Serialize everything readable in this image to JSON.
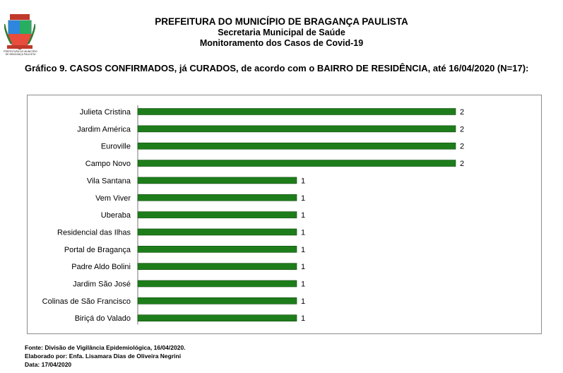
{
  "header": {
    "line1": "PREFEITURA DO MUNICÍPIO DE BRAGANÇA PAULISTA",
    "line2": "Secretaria Municipal de Saúde",
    "line3": "Monitoramento dos Casos de Covid-19"
  },
  "logo": {
    "caption_line1": "PREFEITURA DO MUNICÍPIO",
    "caption_line2": "DE BRAGANÇA PAULISTA"
  },
  "chart_data": {
    "type": "bar",
    "orientation": "horizontal",
    "title": "Gráfico 9. CASOS CONFIRMADOS, já CURADOS, de acordo com o BAIRRO DE RESIDÊNCIA, até 16/04/2020 (N=17):",
    "categories": [
      "Julieta Cristina",
      "Jardim América",
      "Euroville",
      "Campo Novo",
      "Vila Santana",
      "Vem Viver",
      "Uberaba",
      "Residencial das Ilhas",
      "Portal de Bragança",
      "Padre Aldo Bolini",
      "Jardim São José",
      "Colinas de São Francisco",
      "Biriçá do Valado"
    ],
    "values": [
      2,
      2,
      2,
      2,
      1,
      1,
      1,
      1,
      1,
      1,
      1,
      1,
      1
    ],
    "xlim": [
      0,
      2
    ],
    "data_labels": true,
    "grid": false,
    "bar_color": "#1e7d1b"
  },
  "footer": {
    "source": "Fonte: Divisão de Vigilância Epidemiológica, 16/04/2020.",
    "author": "Elaborado por: Enfa. Lisamara Dias de Oliveira Negrini",
    "date": "Data: 17/04/2020"
  }
}
